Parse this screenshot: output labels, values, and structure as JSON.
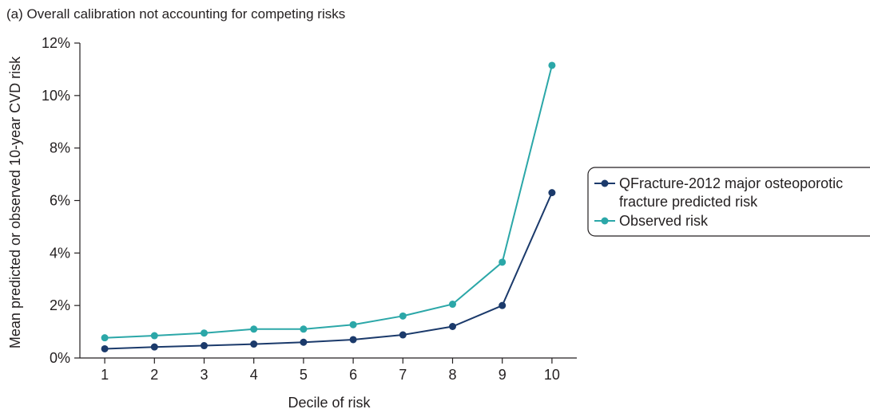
{
  "chart_data": {
    "type": "line",
    "title": "(a) Overall calibration not accounting for competing risks",
    "xlabel": "Decile of risk",
    "ylabel": "Mean predicted or observed 10-year CVD risk",
    "x": [
      1,
      2,
      3,
      4,
      5,
      6,
      7,
      8,
      9,
      10
    ],
    "x_tick_labels": [
      "1",
      "2",
      "3",
      "4",
      "5",
      "6",
      "7",
      "8",
      "9",
      "10"
    ],
    "ylim": [
      0,
      12
    ],
    "y_ticks": [
      0,
      2,
      4,
      6,
      8,
      10,
      12
    ],
    "y_tick_labels": [
      "0%",
      "2%",
      "4%",
      "6%",
      "8%",
      "10%",
      "12%"
    ],
    "grid": false,
    "legend_position": "right",
    "series": [
      {
        "name": "QFracture-2012 major osteoporotic fracture predicted risk",
        "legend_lines": [
          "QFracture-2012 major osteoporotic",
          "fracture predicted risk"
        ],
        "color": "#1b3a6b",
        "values": [
          0.35,
          0.42,
          0.47,
          0.53,
          0.6,
          0.7,
          0.88,
          1.2,
          2.0,
          6.3
        ]
      },
      {
        "name": "Observed risk",
        "legend_lines": [
          "Observed risk"
        ],
        "color": "#2ba7a8",
        "values": [
          0.77,
          0.85,
          0.95,
          1.1,
          1.1,
          1.27,
          1.6,
          2.05,
          3.65,
          11.15
        ]
      }
    ]
  }
}
